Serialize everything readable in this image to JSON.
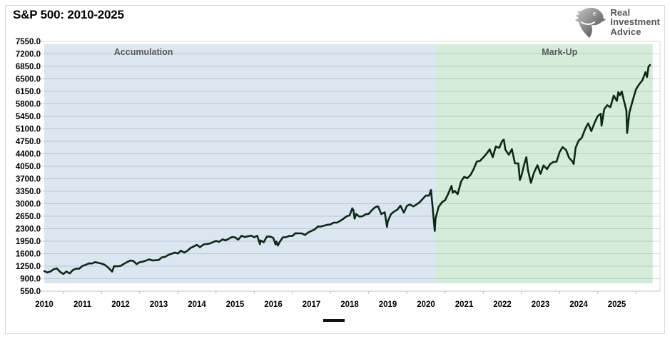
{
  "header": {
    "title": "S&P 500: 2010-2025",
    "logo": {
      "lines": [
        "Real",
        "Investment",
        "Advice"
      ],
      "text_color": "#55565a"
    }
  },
  "legend": {
    "marker": "dash",
    "marker_color": "#111111"
  },
  "colors": {
    "accumulation_fill": "#dce6f1",
    "markup_fill": "#d6ecda",
    "line": "#0d2818",
    "gridline": "rgba(110,110,110,0.28)",
    "axis": "#bfbfbf",
    "region_label": "#595959",
    "tick_label": "#000000"
  },
  "chart_data": {
    "type": "line",
    "title": "S&P 500: 2010-2025",
    "xlabel": "",
    "ylabel": "",
    "grid": true,
    "ylim": [
      550,
      7550
    ],
    "xlim": [
      2010,
      2026.13
    ],
    "y_tick_step": 350,
    "y_tick_labels": [
      "7550.0",
      "7200.0",
      "6850.0",
      "6500.0",
      "6150.0",
      "5800.0",
      "5450.0",
      "5100.0",
      "4750.0",
      "4400.0",
      "4050.0",
      "3700.0",
      "3350.0",
      "3000.0",
      "2650.0",
      "2300.0",
      "1950.0",
      "1600.0",
      "1250.0",
      "900.0",
      "550.0"
    ],
    "y_tick_values": [
      7550,
      7200,
      6850,
      6500,
      6150,
      5800,
      5450,
      5100,
      4750,
      4400,
      4050,
      3700,
      3350,
      3000,
      2650,
      2300,
      1950,
      1600,
      1250,
      900,
      550
    ],
    "x_tick_labels": [
      "2010",
      "2011",
      "2012",
      "2013",
      "2014",
      "2015",
      "2016",
      "2017",
      "2018",
      "2019",
      "2020",
      "2021",
      "2022",
      "2023",
      "2024",
      "2025"
    ],
    "x_tick_values": [
      2010,
      2011,
      2012,
      2013,
      2014,
      2015,
      2016,
      2017,
      2018,
      2019,
      2020,
      2021,
      2022,
      2023,
      2024,
      2025
    ],
    "legend_position": "bottom-center",
    "regions": [
      {
        "label": "Accumulation",
        "start": 2010.0,
        "end": 2020.24,
        "color": "#dce6f1",
        "label_x": 2012.6,
        "band_top": 7470,
        "band_bottom": 770
      },
      {
        "label": "Mark-Up",
        "start": 2020.24,
        "end": 2025.94,
        "color": "#d6ecda",
        "label_x": 2023.5,
        "band_top": 7470,
        "band_bottom": 770
      }
    ],
    "series": [
      {
        "name": "S&P 500",
        "color": "#0d2818",
        "points": [
          [
            2010.0,
            1115
          ],
          [
            2010.08,
            1074
          ],
          [
            2010.17,
            1104
          ],
          [
            2010.25,
            1169
          ],
          [
            2010.33,
            1187
          ],
          [
            2010.42,
            1089
          ],
          [
            2010.5,
            1031
          ],
          [
            2010.58,
            1102
          ],
          [
            2010.67,
            1049
          ],
          [
            2010.75,
            1141
          ],
          [
            2010.83,
            1183
          ],
          [
            2010.92,
            1181
          ],
          [
            2011.0,
            1258
          ],
          [
            2011.08,
            1286
          ],
          [
            2011.17,
            1327
          ],
          [
            2011.25,
            1326
          ],
          [
            2011.33,
            1364
          ],
          [
            2011.42,
            1345
          ],
          [
            2011.5,
            1321
          ],
          [
            2011.58,
            1292
          ],
          [
            2011.67,
            1219
          ],
          [
            2011.75,
            1131
          ],
          [
            2011.78,
            1099
          ],
          [
            2011.83,
            1253
          ],
          [
            2011.92,
            1247
          ],
          [
            2012.0,
            1258
          ],
          [
            2012.08,
            1312
          ],
          [
            2012.17,
            1366
          ],
          [
            2012.25,
            1408
          ],
          [
            2012.33,
            1398
          ],
          [
            2012.42,
            1310
          ],
          [
            2012.5,
            1362
          ],
          [
            2012.58,
            1379
          ],
          [
            2012.67,
            1407
          ],
          [
            2012.75,
            1441
          ],
          [
            2012.83,
            1412
          ],
          [
            2012.92,
            1416
          ],
          [
            2013.0,
            1426
          ],
          [
            2013.08,
            1498
          ],
          [
            2013.17,
            1515
          ],
          [
            2013.25,
            1569
          ],
          [
            2013.33,
            1598
          ],
          [
            2013.42,
            1631
          ],
          [
            2013.5,
            1606
          ],
          [
            2013.58,
            1686
          ],
          [
            2013.67,
            1633
          ],
          [
            2013.75,
            1682
          ],
          [
            2013.83,
            1757
          ],
          [
            2013.92,
            1806
          ],
          [
            2014.0,
            1848
          ],
          [
            2014.08,
            1783
          ],
          [
            2014.17,
            1859
          ],
          [
            2014.25,
            1872
          ],
          [
            2014.33,
            1884
          ],
          [
            2014.42,
            1924
          ],
          [
            2014.5,
            1960
          ],
          [
            2014.58,
            1931
          ],
          [
            2014.67,
            2003
          ],
          [
            2014.75,
            1972
          ],
          [
            2014.83,
            2018
          ],
          [
            2014.92,
            2068
          ],
          [
            2015.0,
            2059
          ],
          [
            2015.08,
            1995
          ],
          [
            2015.17,
            2105
          ],
          [
            2015.25,
            2068
          ],
          [
            2015.33,
            2086
          ],
          [
            2015.42,
            2107
          ],
          [
            2015.5,
            2063
          ],
          [
            2015.58,
            2104
          ],
          [
            2015.65,
            1868
          ],
          [
            2015.67,
            1972
          ],
          [
            2015.75,
            1920
          ],
          [
            2015.83,
            2079
          ],
          [
            2015.92,
            2080
          ],
          [
            2016.0,
            2044
          ],
          [
            2016.06,
            1859
          ],
          [
            2016.08,
            1940
          ],
          [
            2016.12,
            1829
          ],
          [
            2016.17,
            1932
          ],
          [
            2016.25,
            2060
          ],
          [
            2016.33,
            2065
          ],
          [
            2016.42,
            2097
          ],
          [
            2016.5,
            2099
          ],
          [
            2016.58,
            2174
          ],
          [
            2016.67,
            2171
          ],
          [
            2016.75,
            2168
          ],
          [
            2016.83,
            2126
          ],
          [
            2016.92,
            2199
          ],
          [
            2017.0,
            2239
          ],
          [
            2017.08,
            2279
          ],
          [
            2017.17,
            2364
          ],
          [
            2017.25,
            2363
          ],
          [
            2017.33,
            2384
          ],
          [
            2017.42,
            2412
          ],
          [
            2017.5,
            2423
          ],
          [
            2017.58,
            2470
          ],
          [
            2017.67,
            2472
          ],
          [
            2017.75,
            2519
          ],
          [
            2017.83,
            2575
          ],
          [
            2017.92,
            2648
          ],
          [
            2018.0,
            2674
          ],
          [
            2018.07,
            2873
          ],
          [
            2018.1,
            2824
          ],
          [
            2018.13,
            2581
          ],
          [
            2018.17,
            2714
          ],
          [
            2018.25,
            2641
          ],
          [
            2018.33,
            2648
          ],
          [
            2018.42,
            2705
          ],
          [
            2018.5,
            2718
          ],
          [
            2018.58,
            2816
          ],
          [
            2018.67,
            2902
          ],
          [
            2018.73,
            2930
          ],
          [
            2018.75,
            2914
          ],
          [
            2018.83,
            2712
          ],
          [
            2018.92,
            2760
          ],
          [
            2018.98,
            2351
          ],
          [
            2019.0,
            2507
          ],
          [
            2019.08,
            2704
          ],
          [
            2019.17,
            2784
          ],
          [
            2019.25,
            2834
          ],
          [
            2019.33,
            2946
          ],
          [
            2019.42,
            2752
          ],
          [
            2019.5,
            2942
          ],
          [
            2019.58,
            2980
          ],
          [
            2019.67,
            2926
          ],
          [
            2019.75,
            2977
          ],
          [
            2019.83,
            3038
          ],
          [
            2019.92,
            3141
          ],
          [
            2020.0,
            3231
          ],
          [
            2020.08,
            3226
          ],
          [
            2020.13,
            3386
          ],
          [
            2020.17,
            2954
          ],
          [
            2020.23,
            2237
          ],
          [
            2020.25,
            2585
          ],
          [
            2020.33,
            2912
          ],
          [
            2020.42,
            3044
          ],
          [
            2020.5,
            3100
          ],
          [
            2020.58,
            3271
          ],
          [
            2020.67,
            3500
          ],
          [
            2020.7,
            3310
          ],
          [
            2020.75,
            3363
          ],
          [
            2020.83,
            3270
          ],
          [
            2020.92,
            3622
          ],
          [
            2021.0,
            3756
          ],
          [
            2021.08,
            3714
          ],
          [
            2021.17,
            3811
          ],
          [
            2021.25,
            3973
          ],
          [
            2021.33,
            4181
          ],
          [
            2021.42,
            4204
          ],
          [
            2021.5,
            4298
          ],
          [
            2021.58,
            4395
          ],
          [
            2021.67,
            4523
          ],
          [
            2021.75,
            4308
          ],
          [
            2021.83,
            4605
          ],
          [
            2021.92,
            4567
          ],
          [
            2022.0,
            4766
          ],
          [
            2022.04,
            4797
          ],
          [
            2022.08,
            4516
          ],
          [
            2022.17,
            4374
          ],
          [
            2022.25,
            4530
          ],
          [
            2022.33,
            4132
          ],
          [
            2022.42,
            4132
          ],
          [
            2022.46,
            3667
          ],
          [
            2022.5,
            3785
          ],
          [
            2022.58,
            4130
          ],
          [
            2022.63,
            4305
          ],
          [
            2022.67,
            3955
          ],
          [
            2022.75,
            3586
          ],
          [
            2022.83,
            3872
          ],
          [
            2022.92,
            4080
          ],
          [
            2023.0,
            3840
          ],
          [
            2023.08,
            4077
          ],
          [
            2023.17,
            3970
          ],
          [
            2023.25,
            4109
          ],
          [
            2023.33,
            4169
          ],
          [
            2023.42,
            4180
          ],
          [
            2023.5,
            4450
          ],
          [
            2023.58,
            4589
          ],
          [
            2023.67,
            4508
          ],
          [
            2023.75,
            4288
          ],
          [
            2023.83,
            4194
          ],
          [
            2023.87,
            4117
          ],
          [
            2023.92,
            4568
          ],
          [
            2024.0,
            4770
          ],
          [
            2024.08,
            4846
          ],
          [
            2024.17,
            5096
          ],
          [
            2024.25,
            5254
          ],
          [
            2024.33,
            5036
          ],
          [
            2024.42,
            5278
          ],
          [
            2024.5,
            5460
          ],
          [
            2024.58,
            5522
          ],
          [
            2024.6,
            5186
          ],
          [
            2024.67,
            5648
          ],
          [
            2024.75,
            5762
          ],
          [
            2024.83,
            5705
          ],
          [
            2024.92,
            6032
          ],
          [
            2025.0,
            5882
          ],
          [
            2025.04,
            6129
          ],
          [
            2025.08,
            6041
          ],
          [
            2025.13,
            6147
          ],
          [
            2025.17,
            5955
          ],
          [
            2025.25,
            5612
          ],
          [
            2025.27,
            4983
          ],
          [
            2025.33,
            5569
          ],
          [
            2025.42,
            5912
          ],
          [
            2025.5,
            6205
          ],
          [
            2025.58,
            6339
          ],
          [
            2025.67,
            6460
          ],
          [
            2025.75,
            6688
          ],
          [
            2025.79,
            6552
          ],
          [
            2025.83,
            6840
          ],
          [
            2025.87,
            6890
          ]
        ]
      }
    ]
  }
}
